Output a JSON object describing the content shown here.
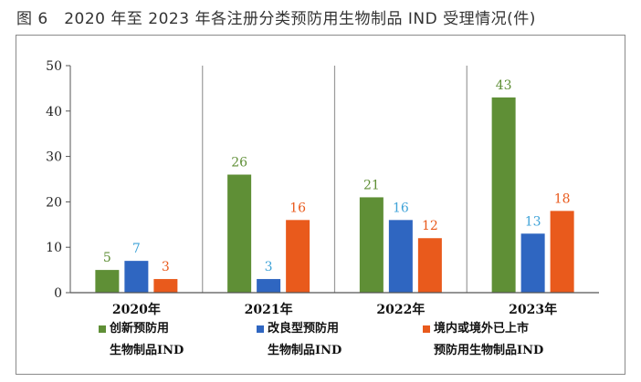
{
  "figure": {
    "title": "图 6　2020 年至 2023 年各注册分类预防用生物制品 IND 受理情况(件)"
  },
  "chart_data": {
    "type": "bar",
    "categories": [
      "2020年",
      "2021年",
      "2022年",
      "2023年"
    ],
    "series": [
      {
        "name": "创新预防用生物制品IND",
        "legend_lines": [
          "创新预防用",
          "生物制品IND"
        ],
        "color": "#5f8f36",
        "values": [
          5,
          26,
          21,
          43
        ]
      },
      {
        "name": "改良型预防用生物制品IND",
        "legend_lines": [
          "改良型预防用",
          "生物制品IND"
        ],
        "color": "#2f66c1",
        "values": [
          7,
          3,
          16,
          13
        ]
      },
      {
        "name": "境内或境外已上市预防用生物制品IND",
        "legend_lines": [
          "境内或境外已上市",
          "预防用生物制品IND"
        ],
        "color": "#e95a1c",
        "values": [
          3,
          16,
          12,
          18
        ]
      }
    ],
    "ylim": [
      0,
      50
    ],
    "yticks": [
      0,
      10,
      20,
      30,
      40,
      50
    ],
    "label_colors": [
      "#5f8f36",
      "#3fa3d8",
      "#e95a1c"
    ],
    "grid": false,
    "legend_position": "bottom"
  }
}
